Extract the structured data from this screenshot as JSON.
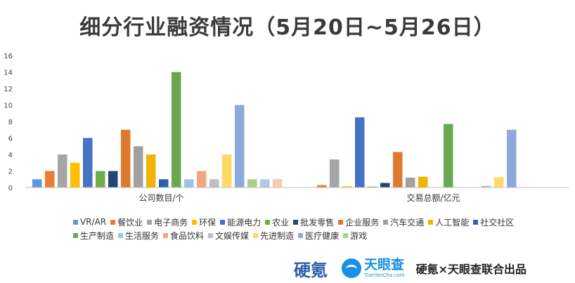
{
  "title": "细分行业融资情况（5月20日~5月26日）",
  "chart_data": {
    "type": "bar",
    "categories": [
      "公司数目/个",
      "交易总额/亿元"
    ],
    "ylim": [
      0,
      16
    ],
    "yticks": [
      0,
      2,
      4,
      6,
      8,
      10,
      12,
      14,
      16
    ],
    "grid": false,
    "legend_position": "bottom",
    "series": [
      {
        "name": "VR/AR",
        "color": "#5b9bd5",
        "values": [
          1,
          0
        ]
      },
      {
        "name": "餐饮业",
        "color": "#ed7d31",
        "values": [
          2,
          0.3
        ]
      },
      {
        "name": "电子商务",
        "color": "#a5a5a5",
        "values": [
          4,
          3.4
        ]
      },
      {
        "name": "环保",
        "color": "#ffc000",
        "values": [
          3,
          0.15
        ]
      },
      {
        "name": "能源电力",
        "color": "#4472c4",
        "values": [
          6,
          8.5
        ]
      },
      {
        "name": "农业",
        "color": "#70ad47",
        "values": [
          2,
          0.1
        ]
      },
      {
        "name": "批发零售",
        "color": "#264478",
        "values": [
          2,
          0.55
        ]
      },
      {
        "name": "企业服务",
        "color": "#dd7a2e",
        "values": [
          7,
          4.3
        ]
      },
      {
        "name": "汽车交通",
        "color": "#a0a0a0",
        "values": [
          5,
          1.2
        ]
      },
      {
        "name": "人工智能",
        "color": "#f2b400",
        "values": [
          4,
          1.3
        ]
      },
      {
        "name": "社交社区",
        "color": "#2e5fa8",
        "values": [
          1,
          0
        ]
      },
      {
        "name": "生产制造",
        "color": "#6aa84f",
        "values": [
          14,
          7.7
        ]
      },
      {
        "name": "生活服务",
        "color": "#9dc3e6",
        "values": [
          1,
          0
        ]
      },
      {
        "name": "食品饮料",
        "color": "#f4a582",
        "values": [
          2,
          0
        ]
      },
      {
        "name": "文娱传媒",
        "color": "#bfbfbf",
        "values": [
          1,
          0.2
        ]
      },
      {
        "name": "先进制造",
        "color": "#ffd966",
        "values": [
          4,
          1.25
        ]
      },
      {
        "name": "医疗健康",
        "color": "#8ea9db",
        "values": [
          10,
          7.0
        ]
      },
      {
        "name": "游戏",
        "color": "#a9d18e",
        "values": [
          1,
          0
        ]
      },
      {
        "name": "",
        "color": "#b4c7e7",
        "values": [
          1,
          0
        ]
      },
      {
        "name": "",
        "color": "#f8cbad",
        "values": [
          1,
          0
        ]
      }
    ]
  },
  "footer": {
    "brand1": "硬氪",
    "brand2_name": "天眼查",
    "brand2_url": "TianYanCha.com",
    "credit": "硬氪×天眼查联合出品"
  }
}
